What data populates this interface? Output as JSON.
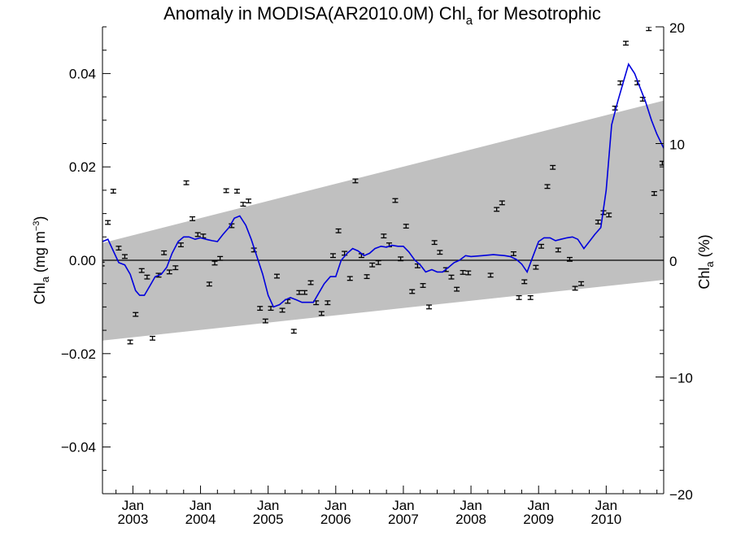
{
  "chart_data": {
    "type": "scatter",
    "title": "Anomaly in MODISA(AR2010.0M) Chl",
    "title_sub": "a",
    "title_suffix": " for Mesotrophic",
    "ylabel_left": {
      "main": "Chl",
      "sub": "a",
      "units_pre": " (mg m",
      "units_sup": "−3",
      "units_post": ")"
    },
    "ylabel_right": {
      "main": "Chl",
      "sub": "a",
      "units": " (%)"
    },
    "xlim": [
      2002.55,
      2010.85
    ],
    "ylim": [
      -0.05,
      0.05
    ],
    "ylim_right": [
      -20,
      20
    ],
    "x_ticks": [
      {
        "x": 2003.0,
        "line1": "Jan",
        "line2": "2003"
      },
      {
        "x": 2004.0,
        "line1": "Jan",
        "line2": "2004"
      },
      {
        "x": 2005.0,
        "line1": "Jan",
        "line2": "2005"
      },
      {
        "x": 2006.0,
        "line1": "Jan",
        "line2": "2006"
      },
      {
        "x": 2007.0,
        "line1": "Jan",
        "line2": "2007"
      },
      {
        "x": 2008.0,
        "line1": "Jan",
        "line2": "2008"
      },
      {
        "x": 2009.0,
        "line1": "Jan",
        "line2": "2009"
      },
      {
        "x": 2010.0,
        "line1": "Jan",
        "line2": "2010"
      }
    ],
    "y_ticks_left": [
      {
        "v": 0.04,
        "label": "0.04"
      },
      {
        "v": 0.02,
        "label": "0.02"
      },
      {
        "v": 0.0,
        "label": "0.00"
      },
      {
        "v": -0.02,
        "label": "−0.02"
      },
      {
        "v": -0.04,
        "label": "−0.04"
      }
    ],
    "y_ticks_right": [
      {
        "v": 20,
        "label": "20"
      },
      {
        "v": 10,
        "label": "10"
      },
      {
        "v": 0,
        "label": "0"
      },
      {
        "v": -10,
        "label": "−10"
      },
      {
        "v": -20,
        "label": "−20"
      }
    ],
    "band": {
      "x": [
        2002.55,
        2010.85
      ],
      "upper": [
        0.0037,
        0.0342
      ],
      "lower": [
        -0.0172,
        -0.0042
      ],
      "color": "#c0c0c0"
    },
    "zero_line": 0,
    "points": [
      {
        "x": 2002.54,
        "y": -0.0008
      },
      {
        "x": 2002.63,
        "y": 0.0081
      },
      {
        "x": 2002.71,
        "y": 0.0148
      },
      {
        "x": 2002.79,
        "y": 0.0026
      },
      {
        "x": 2002.88,
        "y": 0.0008
      },
      {
        "x": 2002.96,
        "y": -0.0175
      },
      {
        "x": 2003.04,
        "y": -0.0116
      },
      {
        "x": 2003.13,
        "y": -0.0022
      },
      {
        "x": 2003.21,
        "y": -0.0036
      },
      {
        "x": 2003.29,
        "y": -0.0167
      },
      {
        "x": 2003.38,
        "y": -0.0032
      },
      {
        "x": 2003.46,
        "y": 0.0016
      },
      {
        "x": 2003.54,
        "y": -0.0025
      },
      {
        "x": 2003.63,
        "y": -0.0016
      },
      {
        "x": 2003.71,
        "y": 0.0033
      },
      {
        "x": 2003.79,
        "y": 0.0166
      },
      {
        "x": 2003.88,
        "y": 0.0089
      },
      {
        "x": 2003.96,
        "y": 0.0055
      },
      {
        "x": 2004.04,
        "y": 0.0052
      },
      {
        "x": 2004.13,
        "y": -0.0051
      },
      {
        "x": 2004.21,
        "y": -0.0006
      },
      {
        "x": 2004.29,
        "y": 0.0004
      },
      {
        "x": 2004.38,
        "y": 0.0149
      },
      {
        "x": 2004.46,
        "y": 0.0074
      },
      {
        "x": 2004.54,
        "y": 0.0148
      },
      {
        "x": 2004.63,
        "y": 0.012
      },
      {
        "x": 2004.71,
        "y": 0.0127
      },
      {
        "x": 2004.79,
        "y": 0.0022
      },
      {
        "x": 2004.88,
        "y": -0.0103
      },
      {
        "x": 2004.96,
        "y": -0.013
      },
      {
        "x": 2005.04,
        "y": -0.0103
      },
      {
        "x": 2005.13,
        "y": -0.0034
      },
      {
        "x": 2005.21,
        "y": -0.0107
      },
      {
        "x": 2005.29,
        "y": -0.0088
      },
      {
        "x": 2005.38,
        "y": -0.0152
      },
      {
        "x": 2005.46,
        "y": -0.0069
      },
      {
        "x": 2005.54,
        "y": -0.0069
      },
      {
        "x": 2005.63,
        "y": -0.0048
      },
      {
        "x": 2005.71,
        "y": -0.0091
      },
      {
        "x": 2005.79,
        "y": -0.0114
      },
      {
        "x": 2005.88,
        "y": -0.0091
      },
      {
        "x": 2005.96,
        "y": 0.001
      },
      {
        "x": 2006.04,
        "y": 0.0063
      },
      {
        "x": 2006.13,
        "y": 0.0015
      },
      {
        "x": 2006.21,
        "y": -0.0039
      },
      {
        "x": 2006.29,
        "y": 0.017
      },
      {
        "x": 2006.38,
        "y": 0.001
      },
      {
        "x": 2006.46,
        "y": -0.0035
      },
      {
        "x": 2006.54,
        "y": -0.001
      },
      {
        "x": 2006.63,
        "y": -0.0005
      },
      {
        "x": 2006.71,
        "y": 0.0052
      },
      {
        "x": 2006.79,
        "y": 0.0033
      },
      {
        "x": 2006.88,
        "y": 0.0128
      },
      {
        "x": 2006.96,
        "y": 0.0003
      },
      {
        "x": 2007.04,
        "y": 0.0073
      },
      {
        "x": 2007.13,
        "y": -0.0067
      },
      {
        "x": 2007.21,
        "y": -0.0012
      },
      {
        "x": 2007.29,
        "y": -0.0054
      },
      {
        "x": 2007.38,
        "y": -0.01
      },
      {
        "x": 2007.46,
        "y": 0.0038
      },
      {
        "x": 2007.54,
        "y": 0.0017
      },
      {
        "x": 2007.63,
        "y": -0.002
      },
      {
        "x": 2007.71,
        "y": -0.0036
      },
      {
        "x": 2007.79,
        "y": -0.0062
      },
      {
        "x": 2007.88,
        "y": -0.0026
      },
      {
        "x": 2007.96,
        "y": -0.0027
      },
      {
        "x": 2008.29,
        "y": -0.0032
      },
      {
        "x": 2008.38,
        "y": 0.0109
      },
      {
        "x": 2008.46,
        "y": 0.0123
      },
      {
        "x": 2008.63,
        "y": 0.0014
      },
      {
        "x": 2008.71,
        "y": -0.008
      },
      {
        "x": 2008.79,
        "y": -0.0046
      },
      {
        "x": 2008.88,
        "y": -0.008
      },
      {
        "x": 2008.96,
        "y": -0.0015
      },
      {
        "x": 2009.04,
        "y": 0.003
      },
      {
        "x": 2009.13,
        "y": 0.0158
      },
      {
        "x": 2009.21,
        "y": 0.0199
      },
      {
        "x": 2009.29,
        "y": 0.0022
      },
      {
        "x": 2009.46,
        "y": 0.0002
      },
      {
        "x": 2009.54,
        "y": -0.006
      },
      {
        "x": 2009.63,
        "y": -0.005
      },
      {
        "x": 2009.88,
        "y": 0.0082
      },
      {
        "x": 2009.96,
        "y": 0.0102
      },
      {
        "x": 2010.04,
        "y": 0.0097
      },
      {
        "x": 2010.13,
        "y": 0.0326
      },
      {
        "x": 2010.21,
        "y": 0.038
      },
      {
        "x": 2010.29,
        "y": 0.0465
      },
      {
        "x": 2010.46,
        "y": 0.038
      },
      {
        "x": 2010.54,
        "y": 0.0345
      },
      {
        "x": 2010.63,
        "y": 0.0496
      },
      {
        "x": 2010.71,
        "y": 0.0143
      },
      {
        "x": 2010.83,
        "y": 0.0208
      }
    ],
    "error_half": 0.0004,
    "smooth_line": {
      "color": "#0000dd",
      "x": [
        2002.55,
        2002.63,
        2002.71,
        2002.79,
        2002.88,
        2002.96,
        2003.04,
        2003.1,
        2003.17,
        2003.25,
        2003.33,
        2003.42,
        2003.5,
        2003.58,
        2003.67,
        2003.75,
        2003.83,
        2003.92,
        2004.0,
        2004.08,
        2004.17,
        2004.25,
        2004.33,
        2004.42,
        2004.5,
        2004.58,
        2004.67,
        2004.75,
        2004.83,
        2004.92,
        2005.0,
        2005.08,
        2005.17,
        2005.25,
        2005.33,
        2005.42,
        2005.5,
        2005.58,
        2005.67,
        2005.75,
        2005.83,
        2005.92,
        2006.0,
        2006.08,
        2006.17,
        2006.25,
        2006.33,
        2006.42,
        2006.5,
        2006.58,
        2006.67,
        2006.75,
        2006.83,
        2006.92,
        2007.0,
        2007.08,
        2007.17,
        2007.25,
        2007.33,
        2007.42,
        2007.5,
        2007.58,
        2007.67,
        2007.75,
        2007.83,
        2007.92,
        2008.0,
        2008.17,
        2008.33,
        2008.5,
        2008.58,
        2008.67,
        2008.75,
        2008.83,
        2008.92,
        2009.0,
        2009.08,
        2009.17,
        2009.25,
        2009.33,
        2009.42,
        2009.5,
        2009.58,
        2009.67,
        2009.75,
        2009.83,
        2009.92,
        2010.0,
        2010.08,
        2010.17,
        2010.25,
        2010.33,
        2010.42,
        2010.5,
        2010.58,
        2010.67,
        2010.75,
        2010.85
      ],
      "y": [
        0.004,
        0.0045,
        0.002,
        -0.0005,
        -0.001,
        -0.003,
        -0.0065,
        -0.0075,
        -0.0075,
        -0.0055,
        -0.0035,
        -0.003,
        -0.0015,
        0.0015,
        0.004,
        0.005,
        0.005,
        0.0045,
        0.0048,
        0.0045,
        0.0042,
        0.004,
        0.0055,
        0.007,
        0.009,
        0.0095,
        0.0075,
        0.0045,
        0.001,
        -0.003,
        -0.0075,
        -0.01,
        -0.0095,
        -0.0085,
        -0.008,
        -0.0085,
        -0.009,
        -0.009,
        -0.009,
        -0.007,
        -0.005,
        -0.0035,
        -0.0035,
        0.0,
        0.0015,
        0.0025,
        0.002,
        0.001,
        0.0015,
        0.0025,
        0.003,
        0.0028,
        0.0032,
        0.003,
        0.003,
        0.0018,
        0.0,
        -0.001,
        -0.0025,
        -0.002,
        -0.0025,
        -0.0025,
        -0.0015,
        -0.0005,
        0.0,
        0.001,
        0.0008,
        0.001,
        0.0012,
        0.001,
        0.0008,
        0.0002,
        -0.0008,
        -0.0025,
        0.001,
        0.004,
        0.0048,
        0.0048,
        0.0042,
        0.0045,
        0.0048,
        0.005,
        0.0045,
        0.0025,
        0.004,
        0.0055,
        0.007,
        0.015,
        0.029,
        0.034,
        0.038,
        0.042,
        0.04,
        0.037,
        0.034,
        0.03,
        0.027,
        0.024
      ]
    }
  }
}
